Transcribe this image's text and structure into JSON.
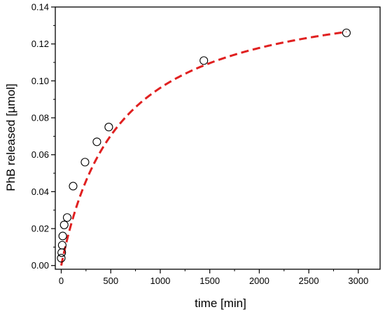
{
  "chart_data": {
    "type": "scatter",
    "title": "",
    "xlabel": "time [min]",
    "ylabel": "PhB released [µmol]",
    "xlim": [
      -60,
      3220
    ],
    "ylim": [
      -0.002,
      0.14
    ],
    "x_ticks": [
      0,
      500,
      1000,
      1500,
      2000,
      2500,
      3000
    ],
    "y_ticks": [
      0.0,
      0.02,
      0.04,
      0.06,
      0.08,
      0.1,
      0.12,
      0.14
    ],
    "x_tick_labels": [
      "0",
      "500",
      "1000",
      "1500",
      "2000",
      "2500",
      "3000"
    ],
    "y_tick_labels": [
      "0.00",
      "0.02",
      "0.04",
      "0.06",
      "0.08",
      "0.10",
      "0.12",
      "0.14"
    ],
    "grid": false,
    "series": [
      {
        "marker": "open-circle",
        "color": "#000000",
        "x": [
          0,
          5,
          10,
          15,
          30,
          60,
          120,
          240,
          360,
          480,
          1440,
          2880
        ],
        "y": [
          0.004,
          0.007,
          0.011,
          0.016,
          0.022,
          0.026,
          0.043,
          0.056,
          0.067,
          0.075,
          0.111,
          0.126
        ]
      },
      {
        "style": "dashed-line",
        "color": "#e02020",
        "fit": {
          "model": "y = a*x/(b + x)",
          "a": 0.152,
          "b": 580
        }
      }
    ]
  }
}
